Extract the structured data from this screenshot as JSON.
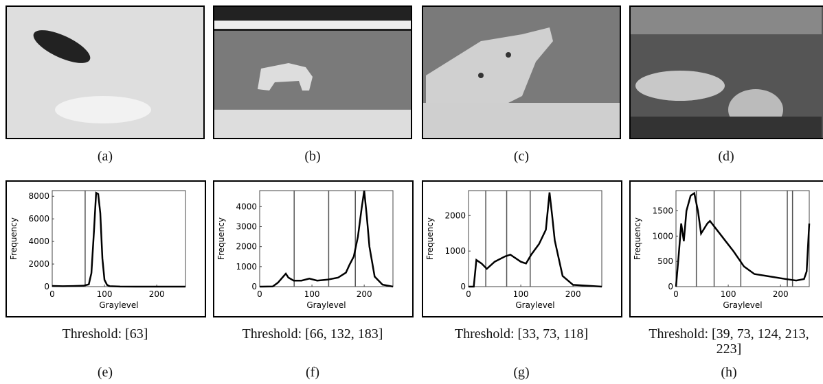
{
  "images": [
    {
      "caption": "(a)"
    },
    {
      "caption": "(b)"
    },
    {
      "caption": "(c)"
    },
    {
      "caption": "(d)"
    }
  ],
  "chart_data": [
    {
      "type": "line",
      "xlabel": "Graylevel",
      "ylabel": "Frequency",
      "caption": "(e)",
      "threshold_text": "Threshold: [63]",
      "thresholds": [
        63
      ],
      "x": [
        0,
        20,
        40,
        60,
        70,
        75,
        80,
        84,
        88,
        92,
        96,
        100,
        105,
        110,
        130,
        160,
        200,
        255
      ],
      "values": [
        60,
        40,
        50,
        80,
        200,
        1200,
        5000,
        8300,
        8200,
        6500,
        2500,
        600,
        150,
        40,
        10,
        0,
        0,
        0
      ],
      "xlim": [
        0,
        255
      ],
      "xticks": [
        0,
        100,
        200
      ],
      "ylim": [
        0,
        8500
      ],
      "yticks": [
        0,
        2000,
        4000,
        6000,
        8000
      ]
    },
    {
      "type": "line",
      "xlabel": "Graylevel",
      "ylabel": "Frequency",
      "caption": "(f)",
      "threshold_text": "Threshold: [66, 132, 183]",
      "thresholds": [
        66,
        132,
        183
      ],
      "x": [
        0,
        25,
        35,
        45,
        50,
        55,
        65,
        80,
        95,
        110,
        130,
        150,
        165,
        172,
        180,
        188,
        195,
        200,
        205,
        210,
        220,
        235,
        255
      ],
      "values": [
        0,
        10,
        200,
        500,
        650,
        450,
        300,
        300,
        400,
        300,
        350,
        450,
        700,
        1100,
        1500,
        2500,
        3900,
        4800,
        3500,
        2000,
        500,
        100,
        0
      ],
      "xlim": [
        0,
        255
      ],
      "xticks": [
        0,
        100,
        200
      ],
      "ylim": [
        0,
        4800
      ],
      "yticks": [
        0,
        1000,
        2000,
        3000,
        4000
      ]
    },
    {
      "type": "line",
      "xlabel": "Graylevel",
      "ylabel": "Frequency",
      "caption": "(g)",
      "threshold_text": "Threshold: [33, 73, 118]",
      "thresholds": [
        33,
        73,
        118
      ],
      "x": [
        0,
        10,
        15,
        25,
        35,
        50,
        70,
        80,
        100,
        110,
        120,
        135,
        148,
        155,
        160,
        165,
        180,
        200,
        255
      ],
      "values": [
        0,
        0,
        750,
        650,
        500,
        700,
        850,
        900,
        700,
        650,
        900,
        1200,
        1600,
        2650,
        2000,
        1300,
        300,
        50,
        0
      ],
      "xlim": [
        0,
        255
      ],
      "xticks": [
        0,
        100,
        200
      ],
      "ylim": [
        0,
        2700
      ],
      "yticks": [
        0,
        1000,
        2000
      ]
    },
    {
      "type": "line",
      "xlabel": "Graylevel",
      "ylabel": "Frequency",
      "caption": "(h)",
      "threshold_text": "Threshold: [39, 73, 124, 213, 223]",
      "thresholds": [
        39,
        73,
        124,
        213,
        223
      ],
      "x": [
        0,
        5,
        10,
        15,
        20,
        28,
        35,
        42,
        48,
        60,
        65,
        80,
        95,
        110,
        120,
        130,
        150,
        180,
        210,
        230,
        245,
        250,
        255
      ],
      "values": [
        0,
        600,
        1250,
        900,
        1500,
        1800,
        1850,
        1500,
        1050,
        1250,
        1300,
        1100,
        900,
        700,
        550,
        400,
        250,
        200,
        150,
        120,
        150,
        300,
        1250
      ],
      "xlim": [
        0,
        255
      ],
      "xticks": [
        0,
        100,
        200
      ],
      "ylim": [
        0,
        1900
      ],
      "yticks": [
        0,
        500,
        1000,
        1500
      ]
    }
  ]
}
